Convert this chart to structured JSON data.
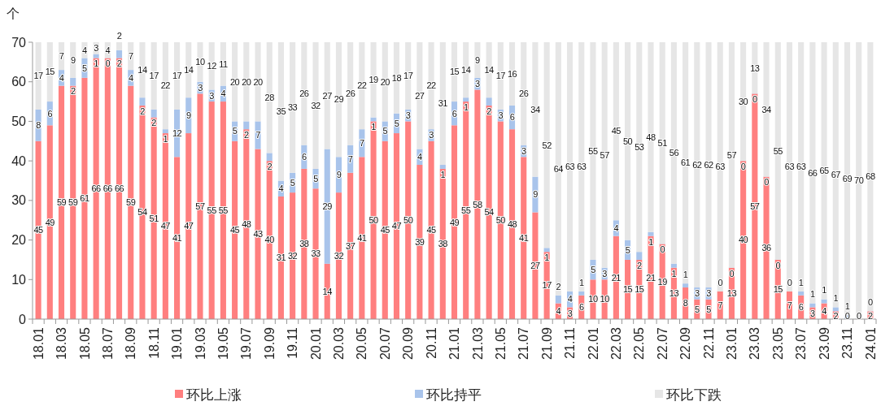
{
  "chart_data": {
    "type": "bar",
    "stacked": true,
    "ylabel": "个",
    "ylim": [
      0,
      70
    ],
    "yticks": [
      0,
      10,
      20,
      30,
      40,
      50,
      60,
      70
    ],
    "grid": false,
    "legend": "bottom",
    "data_labels": true,
    "categories": [
      "18.01",
      null,
      "18.03",
      null,
      "18.05",
      null,
      "18.07",
      null,
      "18.09",
      null,
      "18.11",
      null,
      "19.01",
      null,
      "19.03",
      null,
      "19.05",
      null,
      "19.07",
      null,
      "19.09",
      null,
      "19.11",
      null,
      "20.01",
      null,
      "20.03",
      null,
      "20.05",
      null,
      "20.07",
      null,
      "20.09",
      null,
      "20.11",
      null,
      "21.01",
      null,
      "21.03",
      null,
      "21.05",
      null,
      "21.07",
      null,
      "21.09",
      null,
      "21.11",
      null,
      "22.01",
      null,
      "22.03",
      null,
      "22.05",
      null,
      "22.07",
      null,
      "22.09",
      null,
      "22.11",
      null,
      "23.01",
      null,
      "23.03",
      null,
      "23.05",
      null,
      "23.07",
      null,
      "23.09",
      null,
      "23.11",
      null,
      "24.01"
    ],
    "series": [
      {
        "name": "环比上涨",
        "color": "#ff7f7f",
        "values": [
          45,
          49,
          59,
          59,
          61,
          66,
          66,
          66,
          59,
          54,
          51,
          47,
          41,
          47,
          57,
          55,
          55,
          45,
          48,
          43,
          40,
          31,
          32,
          38,
          33,
          14,
          32,
          37,
          41,
          50,
          45,
          47,
          50,
          39,
          45,
          38,
          49,
          55,
          58,
          54,
          50,
          48,
          41,
          27,
          17,
          4,
          3,
          6,
          10,
          10,
          21,
          15,
          15,
          21,
          19,
          13,
          8,
          5,
          5,
          7,
          13,
          40,
          57,
          36,
          15,
          7,
          6,
          3,
          4,
          2,
          0,
          0,
          2
        ]
      },
      {
        "name": "环比持平",
        "color": "#a9c4eb",
        "values": [
          8,
          6,
          4,
          2,
          5,
          1,
          0,
          2,
          4,
          2,
          2,
          1,
          12,
          9,
          3,
          3,
          4,
          5,
          2,
          7,
          2,
          4,
          5,
          6,
          5,
          29,
          9,
          7,
          7,
          1,
          5,
          5,
          3,
          4,
          3,
          1,
          6,
          1,
          3,
          2,
          3,
          6,
          3,
          9,
          1,
          2,
          4,
          1,
          5,
          3,
          4,
          5,
          2,
          1,
          0,
          1,
          1,
          3,
          3,
          0,
          0,
          0,
          0,
          0,
          0,
          0,
          1,
          1,
          1,
          1,
          1,
          0,
          0
        ],
        "value_labels": [
          "8",
          "6",
          "4",
          "2",
          "5",
          "1",
          "0",
          "2",
          "4",
          "2",
          "2",
          "1",
          "12",
          "9",
          "3",
          "3",
          "4",
          "5",
          "2",
          "7",
          "2",
          "4",
          "5",
          "6",
          "5",
          "29",
          "9",
          "7",
          "7",
          "1",
          "5",
          "5",
          "3",
          "4",
          "3",
          "1",
          "6",
          "1",
          "3",
          "2",
          "3",
          "6",
          "3",
          "9",
          "1",
          "2",
          "4",
          "1",
          "5",
          "3",
          "4",
          "5",
          "2",
          "1",
          "0",
          "1",
          "1",
          "3",
          "3",
          "0",
          "0",
          "0",
          "0",
          "0",
          "0",
          "0",
          "1",
          "1",
          "1",
          "1",
          "1",
          null,
          "0"
        ]
      },
      {
        "name": "环比下跌",
        "color": "#e6e6e6",
        "values": [
          17,
          15,
          7,
          9,
          4,
          3,
          4,
          2,
          7,
          14,
          17,
          22,
          17,
          14,
          10,
          12,
          11,
          20,
          20,
          20,
          28,
          35,
          33,
          26,
          32,
          27,
          29,
          26,
          22,
          19,
          20,
          18,
          17,
          27,
          22,
          31,
          15,
          14,
          9,
          14,
          17,
          16,
          26,
          34,
          52,
          64,
          63,
          63,
          55,
          57,
          45,
          50,
          53,
          48,
          51,
          56,
          61,
          62,
          62,
          63,
          57,
          30,
          13,
          34,
          55,
          63,
          63,
          66,
          65,
          67,
          69,
          70,
          68
        ]
      }
    ]
  }
}
